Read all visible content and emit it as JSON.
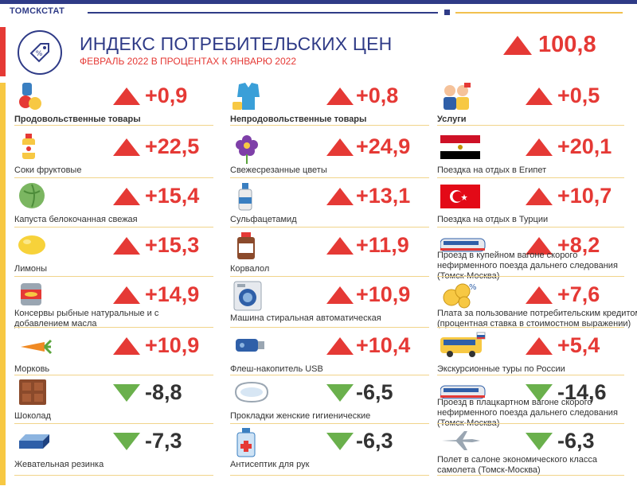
{
  "brand": "ТОМСКСТАТ",
  "title": "ИНДЕКС ПОТРЕБИТЕЛЬСКИХ ЦЕН",
  "subtitle": "ФЕВРАЛЬ 2022 В ПРОЦЕНТАХ К  ЯНВАРЮ 2022",
  "overall": {
    "value": "100,8",
    "direction": "up"
  },
  "colors": {
    "up": "#e53935",
    "down": "#6ab04c",
    "accent": "#2f3b87",
    "gold": "#f7c843"
  },
  "columns": [
    {
      "items": [
        {
          "label": "Продовольственные товары",
          "value": "+0,9",
          "direction": "up",
          "icon": "food-icon",
          "bold": true
        },
        {
          "label": "Соки фруктовые",
          "value": "+22,5",
          "direction": "up",
          "icon": "juice-bottle-icon"
        },
        {
          "label": "Капуста белокочанная свежая",
          "value": "+15,4",
          "direction": "up",
          "icon": "cabbage-icon"
        },
        {
          "label": "Лимоны",
          "value": "+15,3",
          "direction": "up",
          "icon": "lemon-icon"
        },
        {
          "label": "Консервы рыбные натуральные и с",
          "label2": "добавлением масла",
          "value": "+14,9",
          "direction": "up",
          "icon": "canned-fish-icon"
        },
        {
          "label": "Морковь",
          "value": "+10,9",
          "direction": "up",
          "icon": "carrot-icon"
        },
        {
          "label": "Шоколад",
          "value": "-8,8",
          "direction": "down",
          "icon": "chocolate-icon"
        },
        {
          "label": "Жевательная резинка",
          "value": "-7,3",
          "direction": "down",
          "icon": "chewing-gum-icon"
        }
      ]
    },
    {
      "items": [
        {
          "label": "Непродовольственные товары",
          "value": "+0,8",
          "direction": "up",
          "icon": "clothing-icon",
          "bold": true
        },
        {
          "label": "Свежесрезанные  цветы",
          "value": "+24,9",
          "direction": "up",
          "icon": "flower-icon"
        },
        {
          "label": "Сульфацетамид",
          "value": "+13,1",
          "direction": "up",
          "icon": "eye-drops-icon"
        },
        {
          "label": "Корвалол",
          "value": "+11,9",
          "direction": "up",
          "icon": "medicine-bottle-icon"
        },
        {
          "label": "Машина стиральная автоматическая",
          "value": "+10,9",
          "direction": "up",
          "icon": "washing-machine-icon"
        },
        {
          "label": "Флеш-накопитель USB",
          "value": "+10,4",
          "direction": "up",
          "icon": "usb-flash-icon"
        },
        {
          "label": "Прокладки  женские гигиенические",
          "value": "-6,5",
          "direction": "down",
          "icon": "pad-icon"
        },
        {
          "label": "Антисептик для рук",
          "value": "-6,3",
          "direction": "down",
          "icon": "antiseptic-icon"
        }
      ]
    },
    {
      "items": [
        {
          "label": "Услуги",
          "value": "+0,5",
          "direction": "up",
          "icon": "services-people-icon",
          "bold": true
        },
        {
          "label": "Поездка  на отдых в Египет",
          "value": "+20,1",
          "direction": "up",
          "icon": "egypt-flag-icon"
        },
        {
          "label": "Поездка  на отдых в Турции",
          "value": "+10,7",
          "direction": "up",
          "icon": "turkey-flag-icon"
        },
        {
          "label": "Проезд  в купейном вагоне скорого",
          "label2": "нефирменного поезда дальнего следования",
          "label3": "(Томск-Москва)",
          "value": "+8,2",
          "direction": "up",
          "icon": "train-icon"
        },
        {
          "label": "Плата за пользование  потребительским кредитом",
          "label2": "(процентная ставка в стоимостном выражении)",
          "value": "+7,6",
          "direction": "up",
          "icon": "coins-icon"
        },
        {
          "label": "Экскурсионные  туры по России",
          "value": "+5,4",
          "direction": "up",
          "icon": "tour-bus-icon"
        },
        {
          "label": "Проезд  в плацкартном вагоне скорого",
          "label2": "нефирменного поезда дальнего следования",
          "label3": "(Томск-Москва)",
          "value": "-14,6",
          "direction": "down",
          "icon": "train-icon"
        },
        {
          "label": "Полет в салоне экономического  класса",
          "label2": "самолета (Томск-Москва)",
          "value": "-6,3",
          "direction": "down",
          "icon": "airplane-icon"
        }
      ]
    }
  ]
}
